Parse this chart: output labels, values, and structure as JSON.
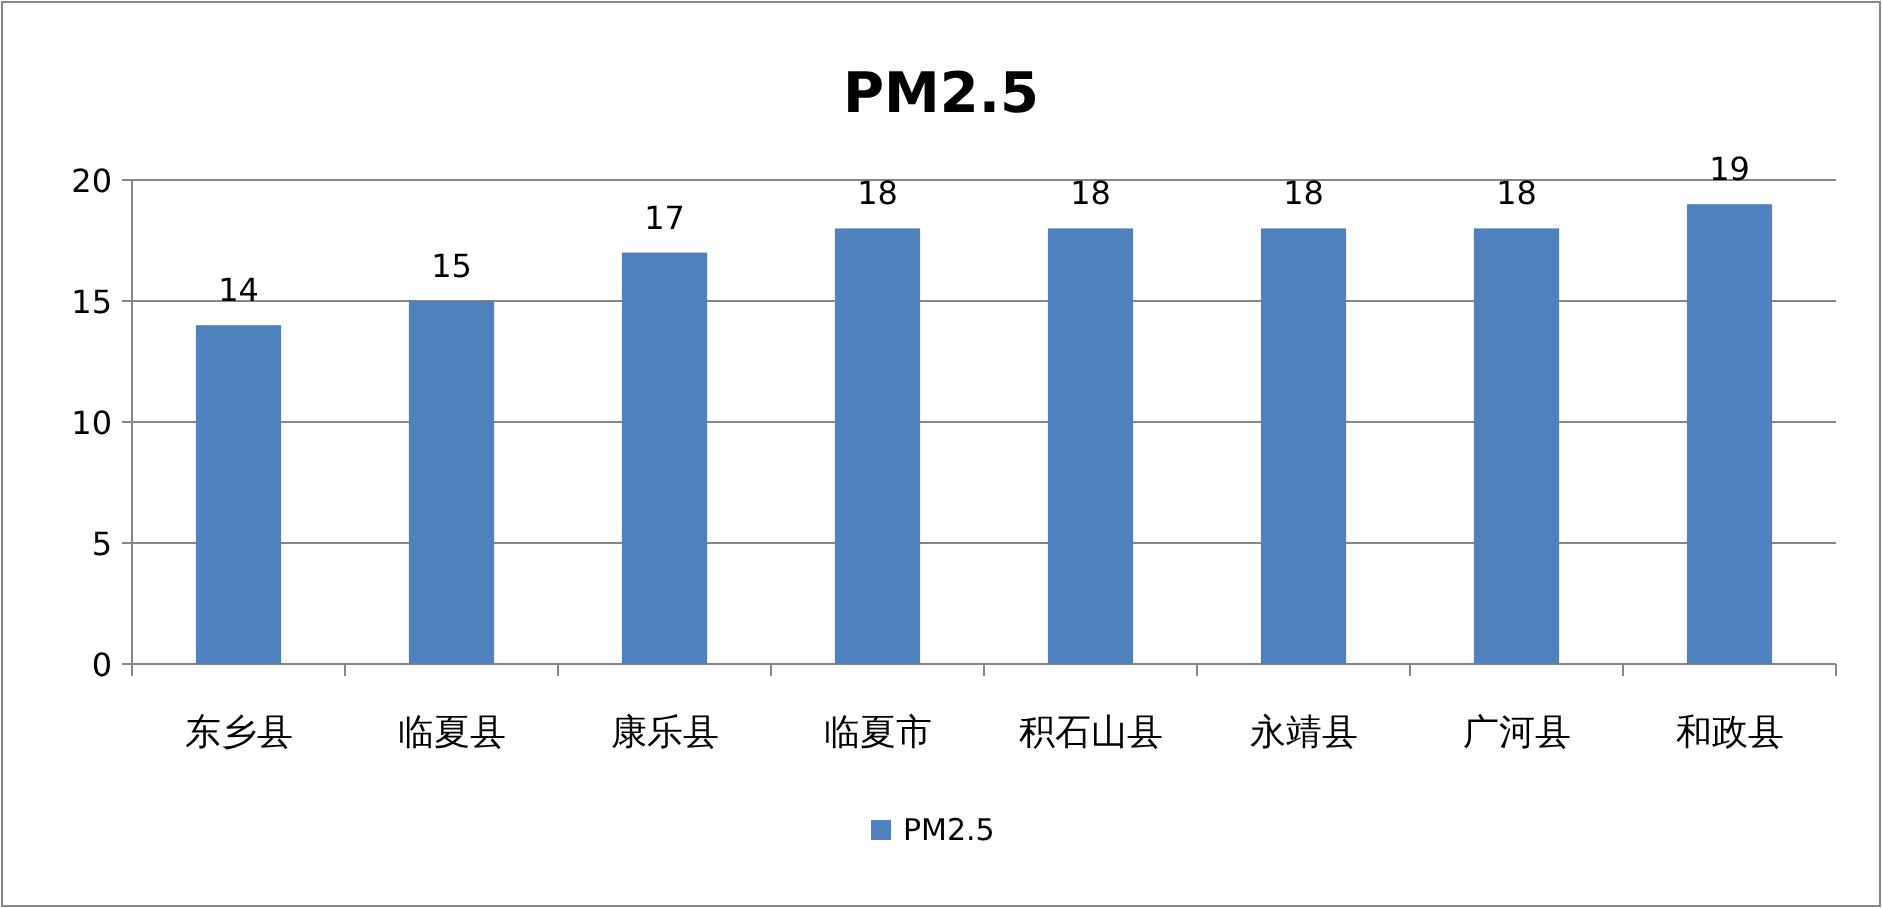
{
  "chart_data": {
    "type": "bar",
    "title": "PM2.5",
    "categories": [
      "东乡县",
      "临夏县",
      "康乐县",
      "临夏市",
      "积石山县",
      "永靖县",
      "广河县",
      "和政县"
    ],
    "series": [
      {
        "name": "PM2.5",
        "color": "#4f81bd",
        "values": [
          14,
          15,
          17,
          18,
          18,
          18,
          18,
          19
        ]
      }
    ],
    "ylim": [
      0,
      20
    ],
    "yticks": [
      0,
      5,
      10,
      15,
      20
    ],
    "grid": "y",
    "legend": "bottom",
    "data_labels": true
  }
}
